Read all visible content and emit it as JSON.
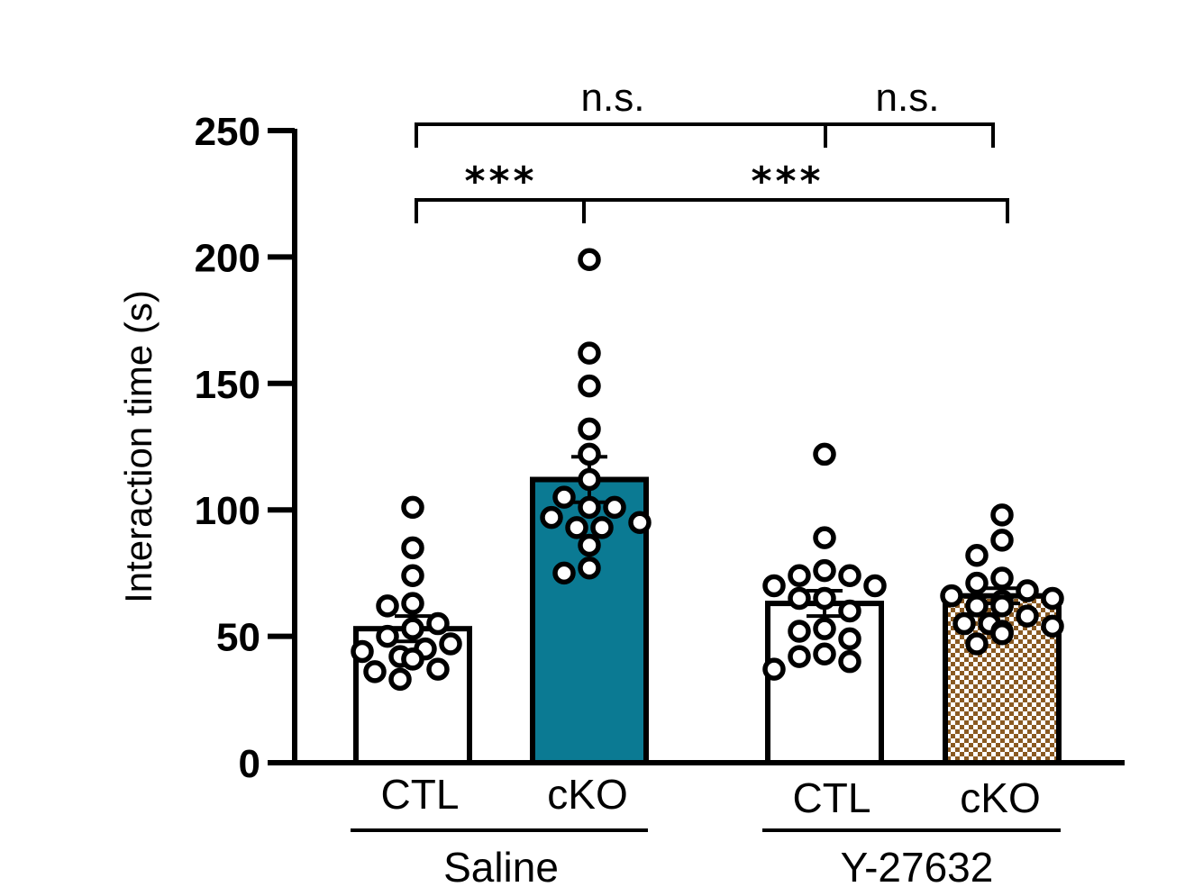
{
  "chart_data": {
    "type": "bar",
    "title": "",
    "ylabel": "Interaction time (s)",
    "xlabel": "",
    "ylim": [
      0,
      250
    ],
    "yticks": [
      "0",
      "50",
      "100",
      "150",
      "200",
      "250"
    ],
    "groups": [
      {
        "label": "Saline",
        "categories": [
          "CTL",
          "cKO"
        ]
      },
      {
        "label": "Y-27632",
        "categories": [
          "CTL",
          "cKO"
        ]
      }
    ],
    "bars": [
      {
        "group": "Saline",
        "category": "CTL",
        "mean": 53,
        "sem": 5,
        "fill": "#ffffff",
        "points": [
          101,
          85,
          74,
          63,
          62,
          55,
          53,
          50,
          47,
          45,
          44,
          42,
          41,
          41,
          37,
          36,
          33
        ]
      },
      {
        "group": "Saline",
        "category": "cKO",
        "mean": 112,
        "sem": 9,
        "fill": "#0b7a93",
        "points": [
          199,
          162,
          149,
          132,
          122,
          112,
          105,
          101,
          101,
          97,
          95,
          93,
          93,
          86,
          77,
          75
        ]
      },
      {
        "group": "Y-27632",
        "category": "CTL",
        "mean": 63,
        "sem": 5,
        "fill": "#ffffff",
        "points": [
          122,
          89,
          76,
          74,
          74,
          70,
          70,
          65,
          65,
          60,
          53,
          52,
          49,
          43,
          42,
          40,
          37
        ]
      },
      {
        "group": "Y-27632",
        "category": "cKO",
        "mean": 66,
        "sem": 3,
        "fill": "checker-brown",
        "points": [
          98,
          88,
          82,
          73,
          71,
          68,
          66,
          65,
          64,
          62,
          62,
          58,
          55,
          55,
          54,
          52,
          51,
          47
        ]
      }
    ],
    "comparisons": [
      {
        "from": "Saline CTL",
        "to": "Y-27632 CTL",
        "label": "n.s."
      },
      {
        "from": "Y-27632 CTL",
        "to": "Y-27632 cKO",
        "label": "n.s."
      },
      {
        "from": "Saline CTL",
        "to": "Saline cKO",
        "label": "***"
      },
      {
        "from": "Saline cKO",
        "to": "Y-27632 cKO",
        "label": "***"
      }
    ]
  }
}
